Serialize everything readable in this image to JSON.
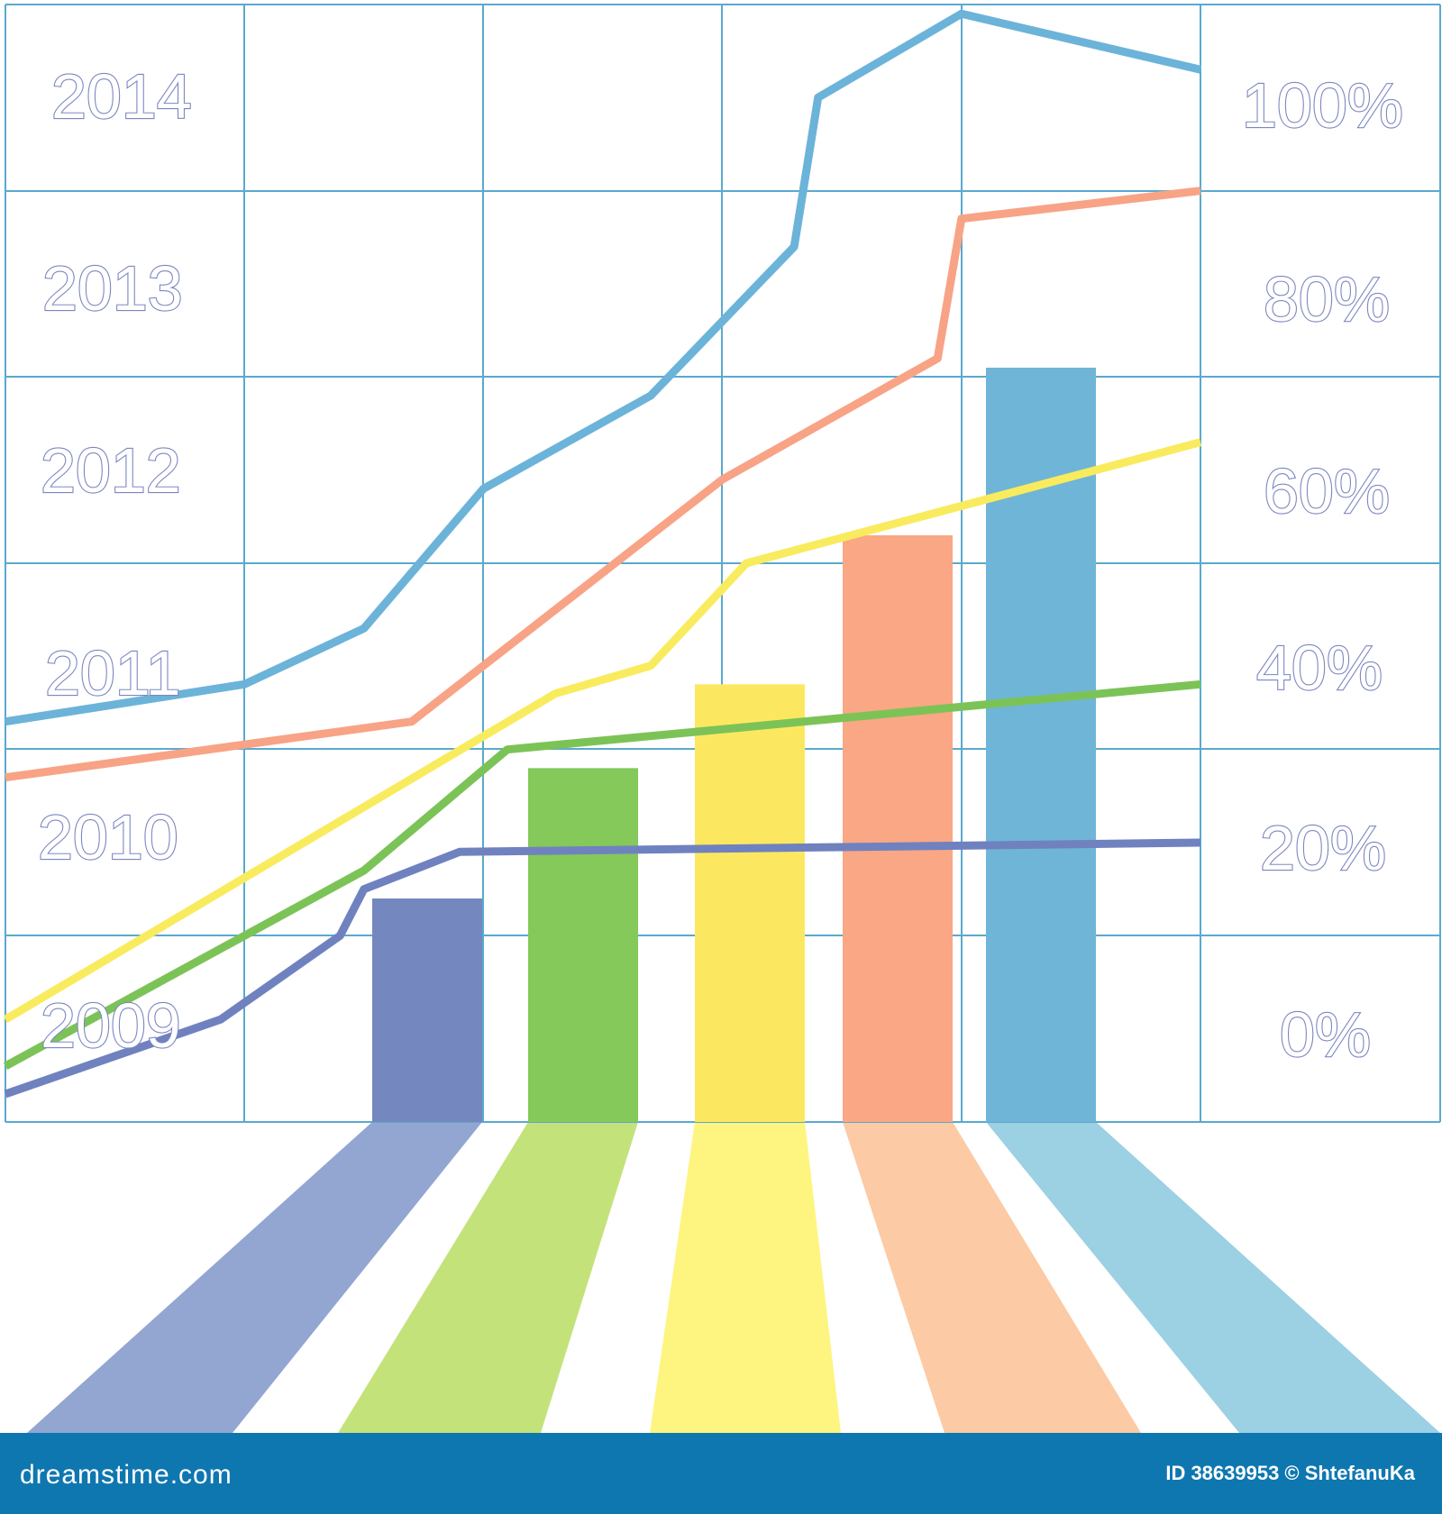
{
  "chart_data": {
    "type": "bar",
    "title": "",
    "xlabel": "",
    "ylabel": "",
    "left_axis_labels": [
      "2009",
      "2010",
      "2011",
      "2012",
      "2013",
      "2014"
    ],
    "right_axis_labels": [
      "0%",
      "20%",
      "40%",
      "60%",
      "80%",
      "100%"
    ],
    "ylim": [
      0,
      120
    ],
    "grid": true,
    "bars": [
      {
        "value": 24,
        "color": "#7587bf"
      },
      {
        "value": 38,
        "color": "#84c95a"
      },
      {
        "value": 47,
        "color": "#fce860"
      },
      {
        "value": 63,
        "color": "#f9a785"
      },
      {
        "value": 81,
        "color": "#6fb5d7"
      }
    ],
    "lines": [
      {
        "color": "#6cb3d9",
        "values": [
          [
            0,
            43
          ],
          [
            10,
            47
          ],
          [
            15,
            53
          ],
          [
            20,
            68
          ],
          [
            27,
            78
          ],
          [
            33,
            94
          ],
          [
            34,
            110
          ],
          [
            40,
            119
          ],
          [
            50,
            113
          ]
        ]
      },
      {
        "color": "#f8a386",
        "values": [
          [
            0,
            37
          ],
          [
            17,
            43
          ],
          [
            23,
            55
          ],
          [
            30,
            69
          ],
          [
            39,
            82
          ],
          [
            40,
            97
          ],
          [
            50,
            100
          ]
        ]
      },
      {
        "color": "#f9eb5e",
        "values": [
          [
            0,
            11
          ],
          [
            23,
            46
          ],
          [
            27,
            49
          ],
          [
            31,
            60
          ],
          [
            50,
            73
          ]
        ]
      },
      {
        "color": "#7cc357",
        "values": [
          [
            0,
            6
          ],
          [
            15,
            27
          ],
          [
            21,
            40
          ],
          [
            50,
            47
          ]
        ]
      },
      {
        "color": "#6f82bf",
        "values": [
          [
            0,
            3
          ],
          [
            9,
            11
          ],
          [
            14,
            20
          ],
          [
            15,
            25
          ],
          [
            19,
            29
          ],
          [
            50,
            30
          ]
        ]
      }
    ],
    "floor_colors": [
      "#93a6d1",
      "#c4e27a",
      "#fdf57f",
      "#fccaa4",
      "#9cd0e3"
    ]
  },
  "footer": {
    "brand": "dreamstime.com",
    "credit": "ID 38639953 © ShtefanuKa"
  }
}
